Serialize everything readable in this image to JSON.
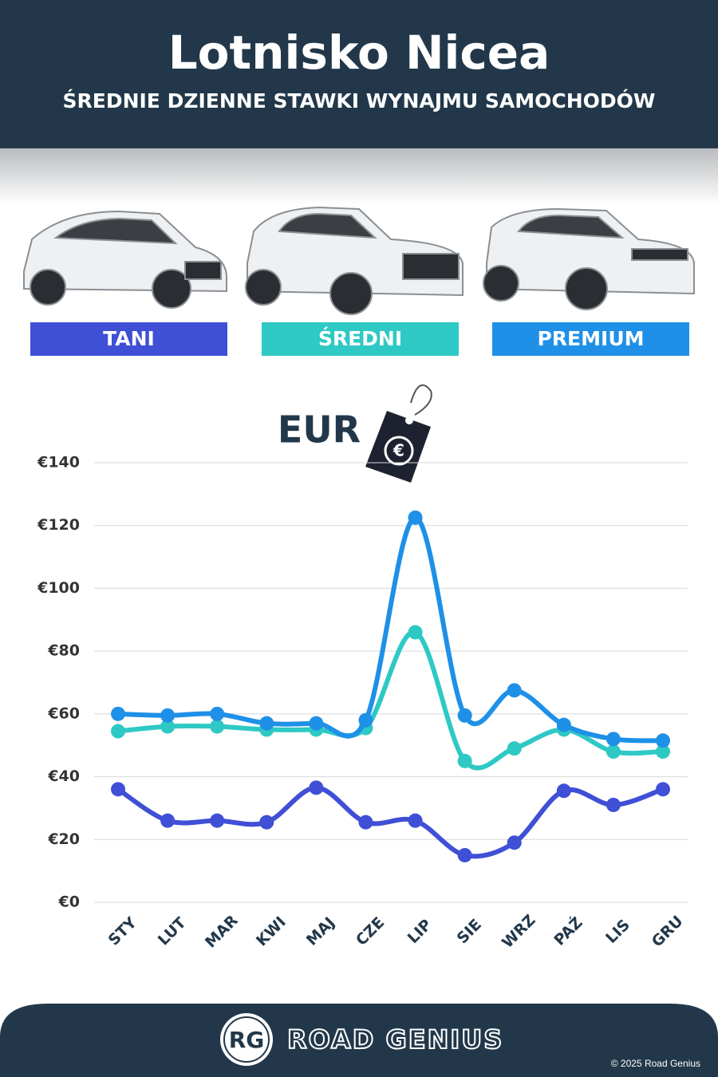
{
  "chart_data": {
    "type": "line",
    "title": "Lotnisko Nicea",
    "subtitle": "ŚREDNIE DZIENNE STAWKI WYNAJMU SAMOCHODÓW",
    "unit_label": "EUR",
    "categories": [
      "STY",
      "LUT",
      "MAR",
      "KWI",
      "MAJ",
      "CZE",
      "LIP",
      "SIE",
      "WRZ",
      "PAŹ",
      "LIS",
      "GRU"
    ],
    "series": [
      {
        "name": "TANI",
        "color": "#3f4fd6",
        "values": [
          36,
          26,
          26,
          25.5,
          36.5,
          25.5,
          26,
          15,
          19,
          35.5,
          31,
          36
        ]
      },
      {
        "name": "ŚREDNI",
        "color": "#2ec9c4",
        "values": [
          54.5,
          56,
          56,
          55,
          55,
          55.5,
          86,
          45,
          49,
          55,
          48,
          48
        ]
      },
      {
        "name": "PREMIUM",
        "color": "#1e90e8",
        "values": [
          60,
          59.5,
          60,
          57,
          57,
          58,
          122.5,
          59.5,
          67.5,
          56.5,
          52,
          51.5
        ]
      }
    ],
    "ylim": [
      0,
      140
    ],
    "yticks": [
      {
        "value": 0,
        "label": "€0"
      },
      {
        "value": 20,
        "label": "€20"
      },
      {
        "value": 40,
        "label": "€40"
      },
      {
        "value": 60,
        "label": "€60"
      },
      {
        "value": 80,
        "label": "€80"
      },
      {
        "value": 100,
        "label": "€100"
      },
      {
        "value": 120,
        "label": "€120"
      },
      {
        "value": 140,
        "label": "€140"
      }
    ],
    "grid": true
  },
  "footer": {
    "logo": "RG",
    "brand": "ROAD GENIUS",
    "copyright": "© 2025 Road Genius"
  }
}
